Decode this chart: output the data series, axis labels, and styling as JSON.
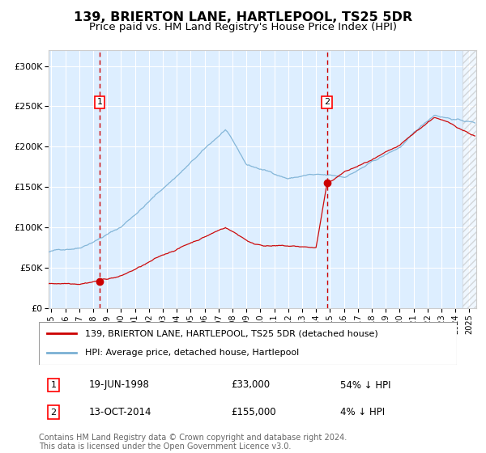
{
  "title": "139, BRIERTON LANE, HARTLEPOOL, TS25 5DR",
  "subtitle": "Price paid vs. HM Land Registry's House Price Index (HPI)",
  "title_fontsize": 11.5,
  "subtitle_fontsize": 9.5,
  "background_color": "#ffffff",
  "plot_bg_color": "#ddeeff",
  "grid_color": "#ffffff",
  "xlim": [
    1994.8,
    2025.5
  ],
  "ylim": [
    0,
    320000
  ],
  "yticks": [
    0,
    50000,
    100000,
    150000,
    200000,
    250000,
    300000
  ],
  "ytick_labels": [
    "£0",
    "£50K",
    "£100K",
    "£150K",
    "£200K",
    "£250K",
    "£300K"
  ],
  "xticks": [
    1995,
    1996,
    1997,
    1998,
    1999,
    2000,
    2001,
    2002,
    2003,
    2004,
    2005,
    2006,
    2007,
    2008,
    2009,
    2010,
    2011,
    2012,
    2013,
    2014,
    2015,
    2016,
    2017,
    2018,
    2019,
    2020,
    2021,
    2022,
    2023,
    2024,
    2025
  ],
  "sale1_date": 1998.47,
  "sale1_price": 33000,
  "sale1_label": "1",
  "sale1_date_str": "19-JUN-1998",
  "sale1_price_str": "£33,000",
  "sale1_hpi_str": "54% ↓ HPI",
  "sale2_date": 2014.78,
  "sale2_price": 155000,
  "sale2_label": "2",
  "sale2_date_str": "13-OCT-2014",
  "sale2_price_str": "£155,000",
  "sale2_hpi_str": "4% ↓ HPI",
  "red_line_color": "#cc0000",
  "blue_line_color": "#7ab0d4",
  "dashed_red_color": "#cc0000",
  "legend_line1": "139, BRIERTON LANE, HARTLEPOOL, TS25 5DR (detached house)",
  "legend_line2": "HPI: Average price, detached house, Hartlepool",
  "footnote": "Contains HM Land Registry data © Crown copyright and database right 2024.\nThis data is licensed under the Open Government Licence v3.0.",
  "footnote_fontsize": 7.0,
  "hatch_start": 2024.5
}
